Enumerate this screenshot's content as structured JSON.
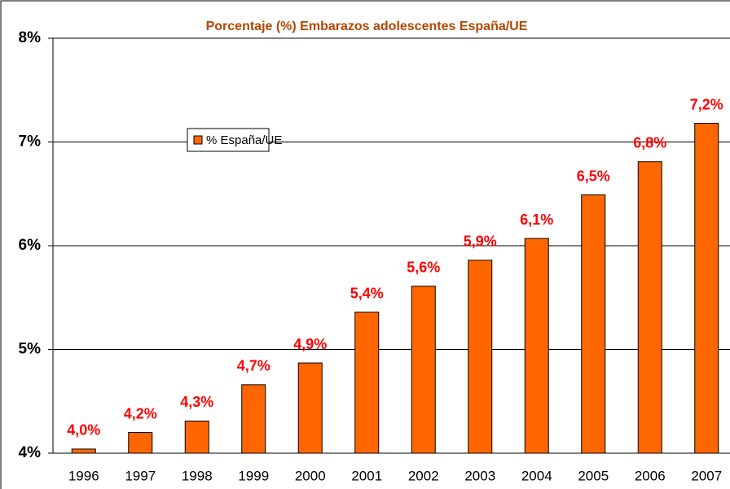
{
  "chart_data": {
    "type": "bar",
    "title": "Porcentaje (%) Embarazos adolescentes España/UE",
    "categories": [
      "1996",
      "1997",
      "1998",
      "1999",
      "2000",
      "2001",
      "2002",
      "2003",
      "2004",
      "2005",
      "2006",
      "2007"
    ],
    "series": [
      {
        "name": "% España/UE",
        "color": "#ff6600",
        "values": [
          4.04,
          4.2,
          4.31,
          4.66,
          4.87,
          5.36,
          5.61,
          5.86,
          6.07,
          6.49,
          6.81,
          7.18
        ],
        "value_labels": [
          "4,0%",
          "4,2%",
          "4,3%",
          "4,7%",
          "4,9%",
          "5,4%",
          "5,6%",
          "5,9%",
          "6,1%",
          "6,5%",
          "6,8%",
          "7,2%"
        ]
      }
    ],
    "ylim": [
      4,
      8
    ],
    "yticks": [
      {
        "value": 4,
        "label": "4%"
      },
      {
        "value": 5,
        "label": "5%"
      },
      {
        "value": 6,
        "label": "6%"
      },
      {
        "value": 7,
        "label": "7%"
      },
      {
        "value": 8,
        "label": "8%"
      }
    ],
    "grid": true
  }
}
